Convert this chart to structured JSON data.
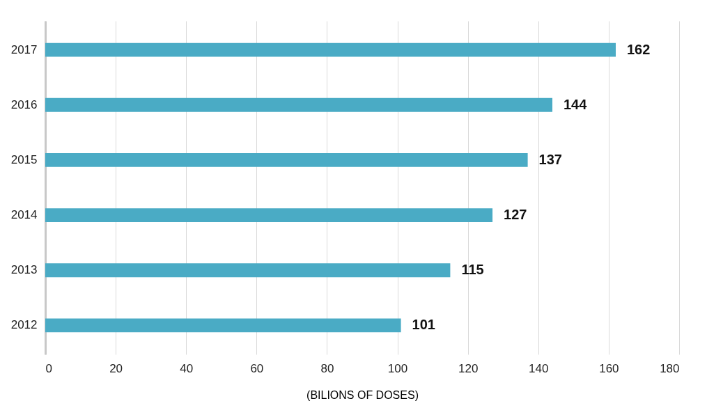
{
  "chart_data": {
    "type": "bar",
    "orientation": "horizontal",
    "categories": [
      "2017",
      "2016",
      "2015",
      "2014",
      "2013",
      "2012"
    ],
    "values": [
      162,
      144,
      137,
      127,
      115,
      101
    ],
    "color": "#4aabc5",
    "xlim": [
      0,
      180
    ],
    "xticks": [
      0,
      20,
      40,
      60,
      80,
      100,
      120,
      140,
      160,
      180
    ],
    "xlabel": "(BILIONS OF DOSES)",
    "grid": "x",
    "data_labels": true
  }
}
